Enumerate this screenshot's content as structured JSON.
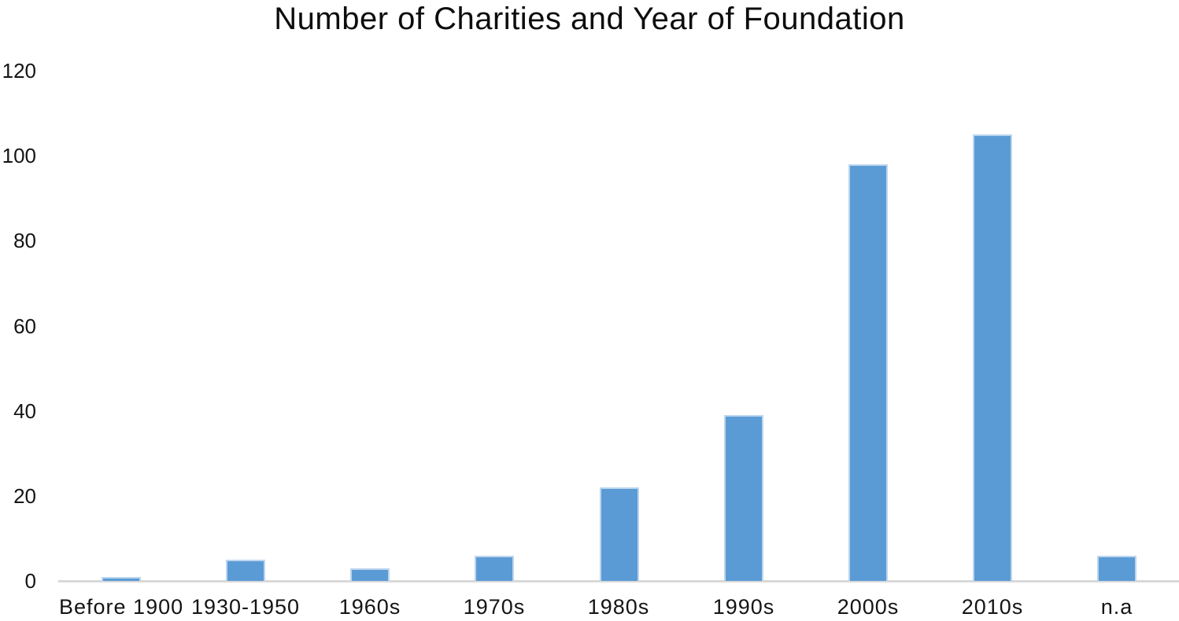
{
  "chart_data": {
    "type": "bar",
    "title": "Number of Charities and Year of Foundation",
    "categories": [
      "Before 1900",
      "1930-1950",
      "1960s",
      "1970s",
      "1980s",
      "1990s",
      "2000s",
      "2010s",
      "n.a"
    ],
    "values": [
      1,
      5,
      3,
      6,
      22,
      39,
      98,
      105,
      6
    ],
    "xlabel": "",
    "ylabel": "",
    "ylim": [
      0,
      120
    ],
    "yticks": [
      0,
      20,
      40,
      60,
      80,
      100,
      120
    ],
    "grid": false,
    "legend": false,
    "colors": {
      "bar_fill": "#5B9BD5",
      "bar_border": "#BCD5EF",
      "axis_line": "#D9D9D9",
      "text": "#141414"
    }
  }
}
